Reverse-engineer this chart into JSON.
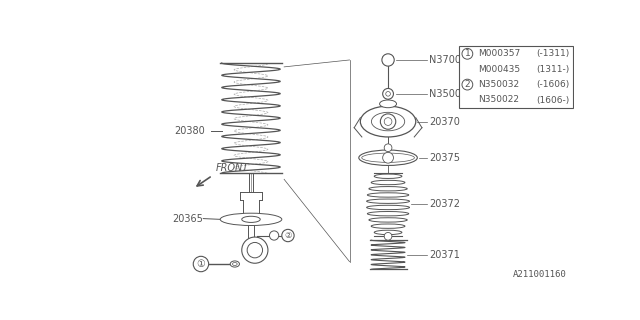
{
  "bg_color": "#ffffff",
  "line_color": "#555555",
  "watermark": "A211001160",
  "fig_w": 6.4,
  "fig_h": 3.2,
  "legend": {
    "rows": [
      [
        "1",
        "M000357",
        "(-1311)"
      ],
      [
        "",
        "M000435",
        "(1311-)"
      ],
      [
        "2",
        "N350032",
        "(-1606)"
      ],
      [
        "",
        "N350022",
        "(1606-)"
      ]
    ]
  }
}
